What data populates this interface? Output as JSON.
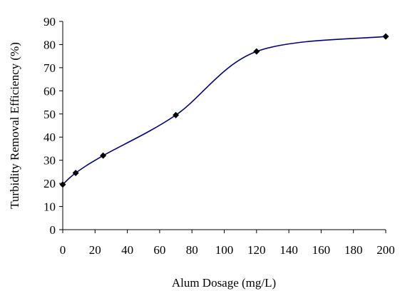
{
  "chart_data": {
    "type": "line",
    "title": "",
    "xlabel": "Alum Dosage (mg/L)",
    "ylabel": "Turbidity Removal Efficiency (%)",
    "xlim": [
      0,
      200
    ],
    "ylim": [
      0,
      90
    ],
    "xticks": [
      0,
      20,
      40,
      60,
      80,
      100,
      120,
      140,
      160,
      180,
      200
    ],
    "yticks": [
      0,
      10,
      20,
      30,
      40,
      50,
      60,
      70,
      80,
      90
    ],
    "grid": false,
    "legend": "none",
    "series": [
      {
        "marker": "diamond",
        "color": "#000080",
        "marker_color": "#000000",
        "x": [
          0,
          8,
          25,
          70,
          120,
          200
        ],
        "y": [
          19.5,
          24.5,
          32,
          49.5,
          77,
          83.5
        ]
      }
    ]
  }
}
